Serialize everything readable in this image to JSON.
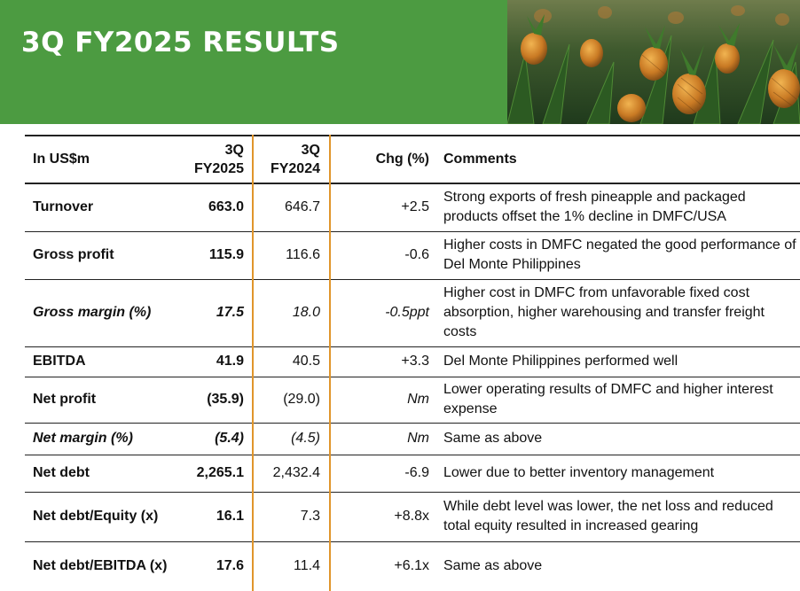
{
  "header": {
    "title": "3Q FY2025 RESULTS",
    "accent_color": "#4c9b41",
    "photo_icon": "pineapple-field-photo"
  },
  "table": {
    "columns": {
      "metric": "In US$m",
      "fy2025_line1": "3Q",
      "fy2025_line2": "FY2025",
      "fy2024_line1": "3Q",
      "fy2024_line2": "FY2024",
      "change": "Chg (%)",
      "comments": "Comments"
    },
    "divider_color": "#e0952b",
    "rows": [
      {
        "metric": "Turnover",
        "fy2025": "663.0",
        "fy2024": "646.7",
        "change": "+2.5",
        "comment": "Strong exports of fresh pineapple and packaged products offset the 1% decline in DMFC/USA"
      },
      {
        "metric": "Gross profit",
        "fy2025": "115.9",
        "fy2024": "116.6",
        "change": "-0.6",
        "comment": "Higher costs in DMFC negated the good performance of Del Monte Philippines"
      },
      {
        "metric": "Gross margin (%)",
        "fy2025": "17.5",
        "fy2024": "18.0",
        "change": "-0.5ppt",
        "comment": "Higher cost in DMFC from unfavorable fixed cost absorption, higher warehousing and transfer freight costs"
      },
      {
        "metric": "EBITDA",
        "fy2025": "41.9",
        "fy2024": "40.5",
        "change": "+3.3",
        "comment": "Del Monte Philippines performed well"
      },
      {
        "metric": "Net profit",
        "fy2025": "(35.9)",
        "fy2024": "(29.0)",
        "change": "Nm",
        "comment": "Lower operating results of DMFC and higher interest expense"
      },
      {
        "metric": "Net margin (%)",
        "fy2025": "(5.4)",
        "fy2024": "(4.5)",
        "change": "Nm",
        "comment": "Same as above"
      },
      {
        "metric": "Net debt",
        "fy2025": "2,265.1",
        "fy2024": "2,432.4",
        "change": "-6.9",
        "comment": "Lower due to better inventory management"
      },
      {
        "metric": "Net debt/Equity (x)",
        "fy2025": "16.1",
        "fy2024": "7.3",
        "change": "+8.8x",
        "comment": "While debt level was lower, the net loss and reduced total equity resulted in increased gearing"
      },
      {
        "metric": "Net debt/EBITDA (x)",
        "fy2025": "17.6",
        "fy2024": "11.4",
        "change": "+6.1x",
        "comment": "Same as above"
      }
    ]
  }
}
